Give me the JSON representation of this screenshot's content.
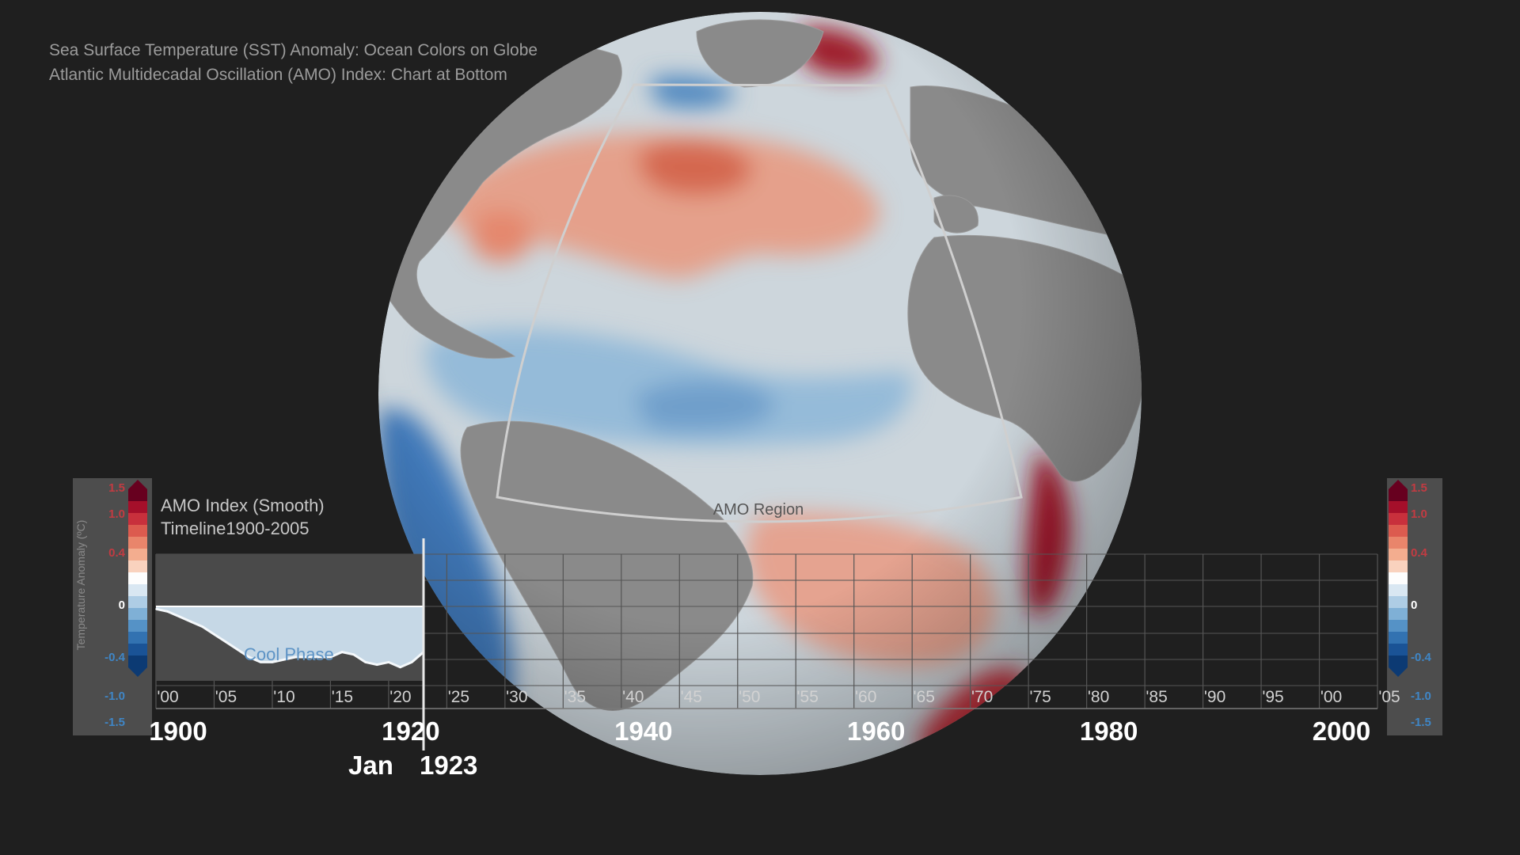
{
  "header": {
    "line1": "Sea Surface Temperature (SST) Anomaly: Ocean Colors on Globe",
    "line2": "Atlantic Multidecadal Oscillation (AMO) Index: Chart at Bottom"
  },
  "globe": {
    "region_label": "AMO Region",
    "land_color": "#8a8a8a",
    "ocean_neutral": "#cfd8de"
  },
  "colorbar": {
    "axis_title": "Temperature Anomaly (ºC)",
    "ticks": [
      "1.5",
      "1.0",
      "0.4",
      "0",
      "-0.4",
      "-1.0",
      "-1.5"
    ],
    "colors": [
      "#67001f",
      "#a50f2a",
      "#c8303c",
      "#dc5b4f",
      "#e9856b",
      "#f3ad8f",
      "#f9d2be",
      "#fdfdfd",
      "#d9e7f2",
      "#aecde5",
      "#7fb0d6",
      "#5592c6",
      "#3272b1",
      "#1a5396",
      "#0c3a73"
    ]
  },
  "chart_data": {
    "type": "area",
    "title": "AMO Index (Smooth)",
    "subtitle": "Timeline1900-2005",
    "phase_label": "Cool Phase",
    "x_tick_labels": [
      "'00",
      "'05",
      "'10",
      "'15",
      "'20",
      "'25",
      "'30",
      "'35",
      "'40",
      "'45",
      "'50",
      "'55",
      "'60",
      "'65",
      "'70",
      "'75",
      "'80",
      "'85",
      "'90",
      "'95",
      "'00",
      "'05"
    ],
    "decade_labels": [
      {
        "year": 1900,
        "label": "1900"
      },
      {
        "year": 1920,
        "label": "1920"
      },
      {
        "year": 1940,
        "label": "1940"
      },
      {
        "year": 1960,
        "label": "1960"
      },
      {
        "year": 1980,
        "label": "1980"
      },
      {
        "year": 2000,
        "label": "2000"
      }
    ],
    "xlim": [
      1900,
      2005
    ],
    "ylim": [
      -1.5,
      1.5
    ],
    "series": [
      {
        "x": [
          1900,
          1901,
          1902,
          1903,
          1904,
          1905,
          1906,
          1907,
          1908,
          1909,
          1910,
          1911,
          1912,
          1913,
          1914,
          1915,
          1916,
          1917,
          1918,
          1919,
          1920,
          1921,
          1922,
          1923
        ],
        "y": [
          -0.01,
          -0.02,
          -0.04,
          -0.06,
          -0.08,
          -0.11,
          -0.14,
          -0.17,
          -0.2,
          -0.22,
          -0.22,
          -0.21,
          -0.2,
          -0.2,
          -0.2,
          -0.2,
          -0.18,
          -0.19,
          -0.22,
          -0.23,
          -0.22,
          -0.24,
          -0.22,
          -0.18
        ]
      }
    ],
    "current_month": "Jan",
    "current_year": "1923",
    "current_x": 1923
  }
}
